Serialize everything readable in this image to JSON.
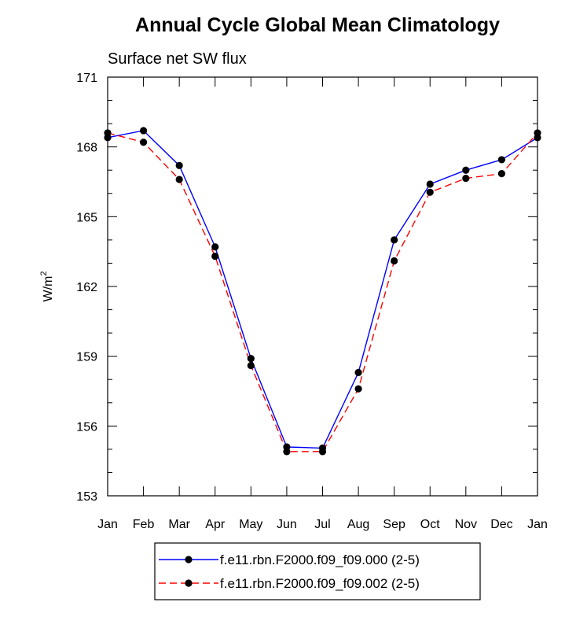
{
  "chart_data": {
    "type": "line",
    "title": "Annual Cycle Global Mean Climatology",
    "subtitle": "Surface net SW flux",
    "ylabel_base": "W/m",
    "ylabel_sup": "2",
    "xlabel": "",
    "categories": [
      "Jan",
      "Feb",
      "Mar",
      "Apr",
      "May",
      "Jun",
      "Jul",
      "Aug",
      "Sep",
      "Oct",
      "Nov",
      "Dec",
      "Jan"
    ],
    "ylim": [
      153,
      171
    ],
    "yticks": [
      "171",
      "168",
      "165",
      "162",
      "159",
      "156",
      "153"
    ],
    "yticks_values": [
      171,
      168,
      165,
      162,
      159,
      156,
      153
    ],
    "series": [
      {
        "name": "f.e11.rbn.F2000.f09_f09.000 (2-5)",
        "color": "#0000ff",
        "dash": "solid",
        "marker": "filled-circle",
        "values": [
          168.4,
          168.7,
          167.2,
          163.7,
          158.9,
          155.1,
          155.05,
          158.3,
          164.0,
          166.4,
          167.0,
          167.45,
          168.4
        ]
      },
      {
        "name": "f.e11.rbn.F2000.f09_f09.002 (2-5)",
        "color": "#ff0000",
        "dash": "dashed",
        "marker": "filled-circle",
        "values": [
          168.6,
          168.2,
          166.6,
          163.3,
          158.6,
          154.9,
          154.9,
          157.6,
          163.1,
          166.05,
          166.65,
          166.85,
          168.6
        ]
      }
    ],
    "legend_position": "bottom-center"
  }
}
